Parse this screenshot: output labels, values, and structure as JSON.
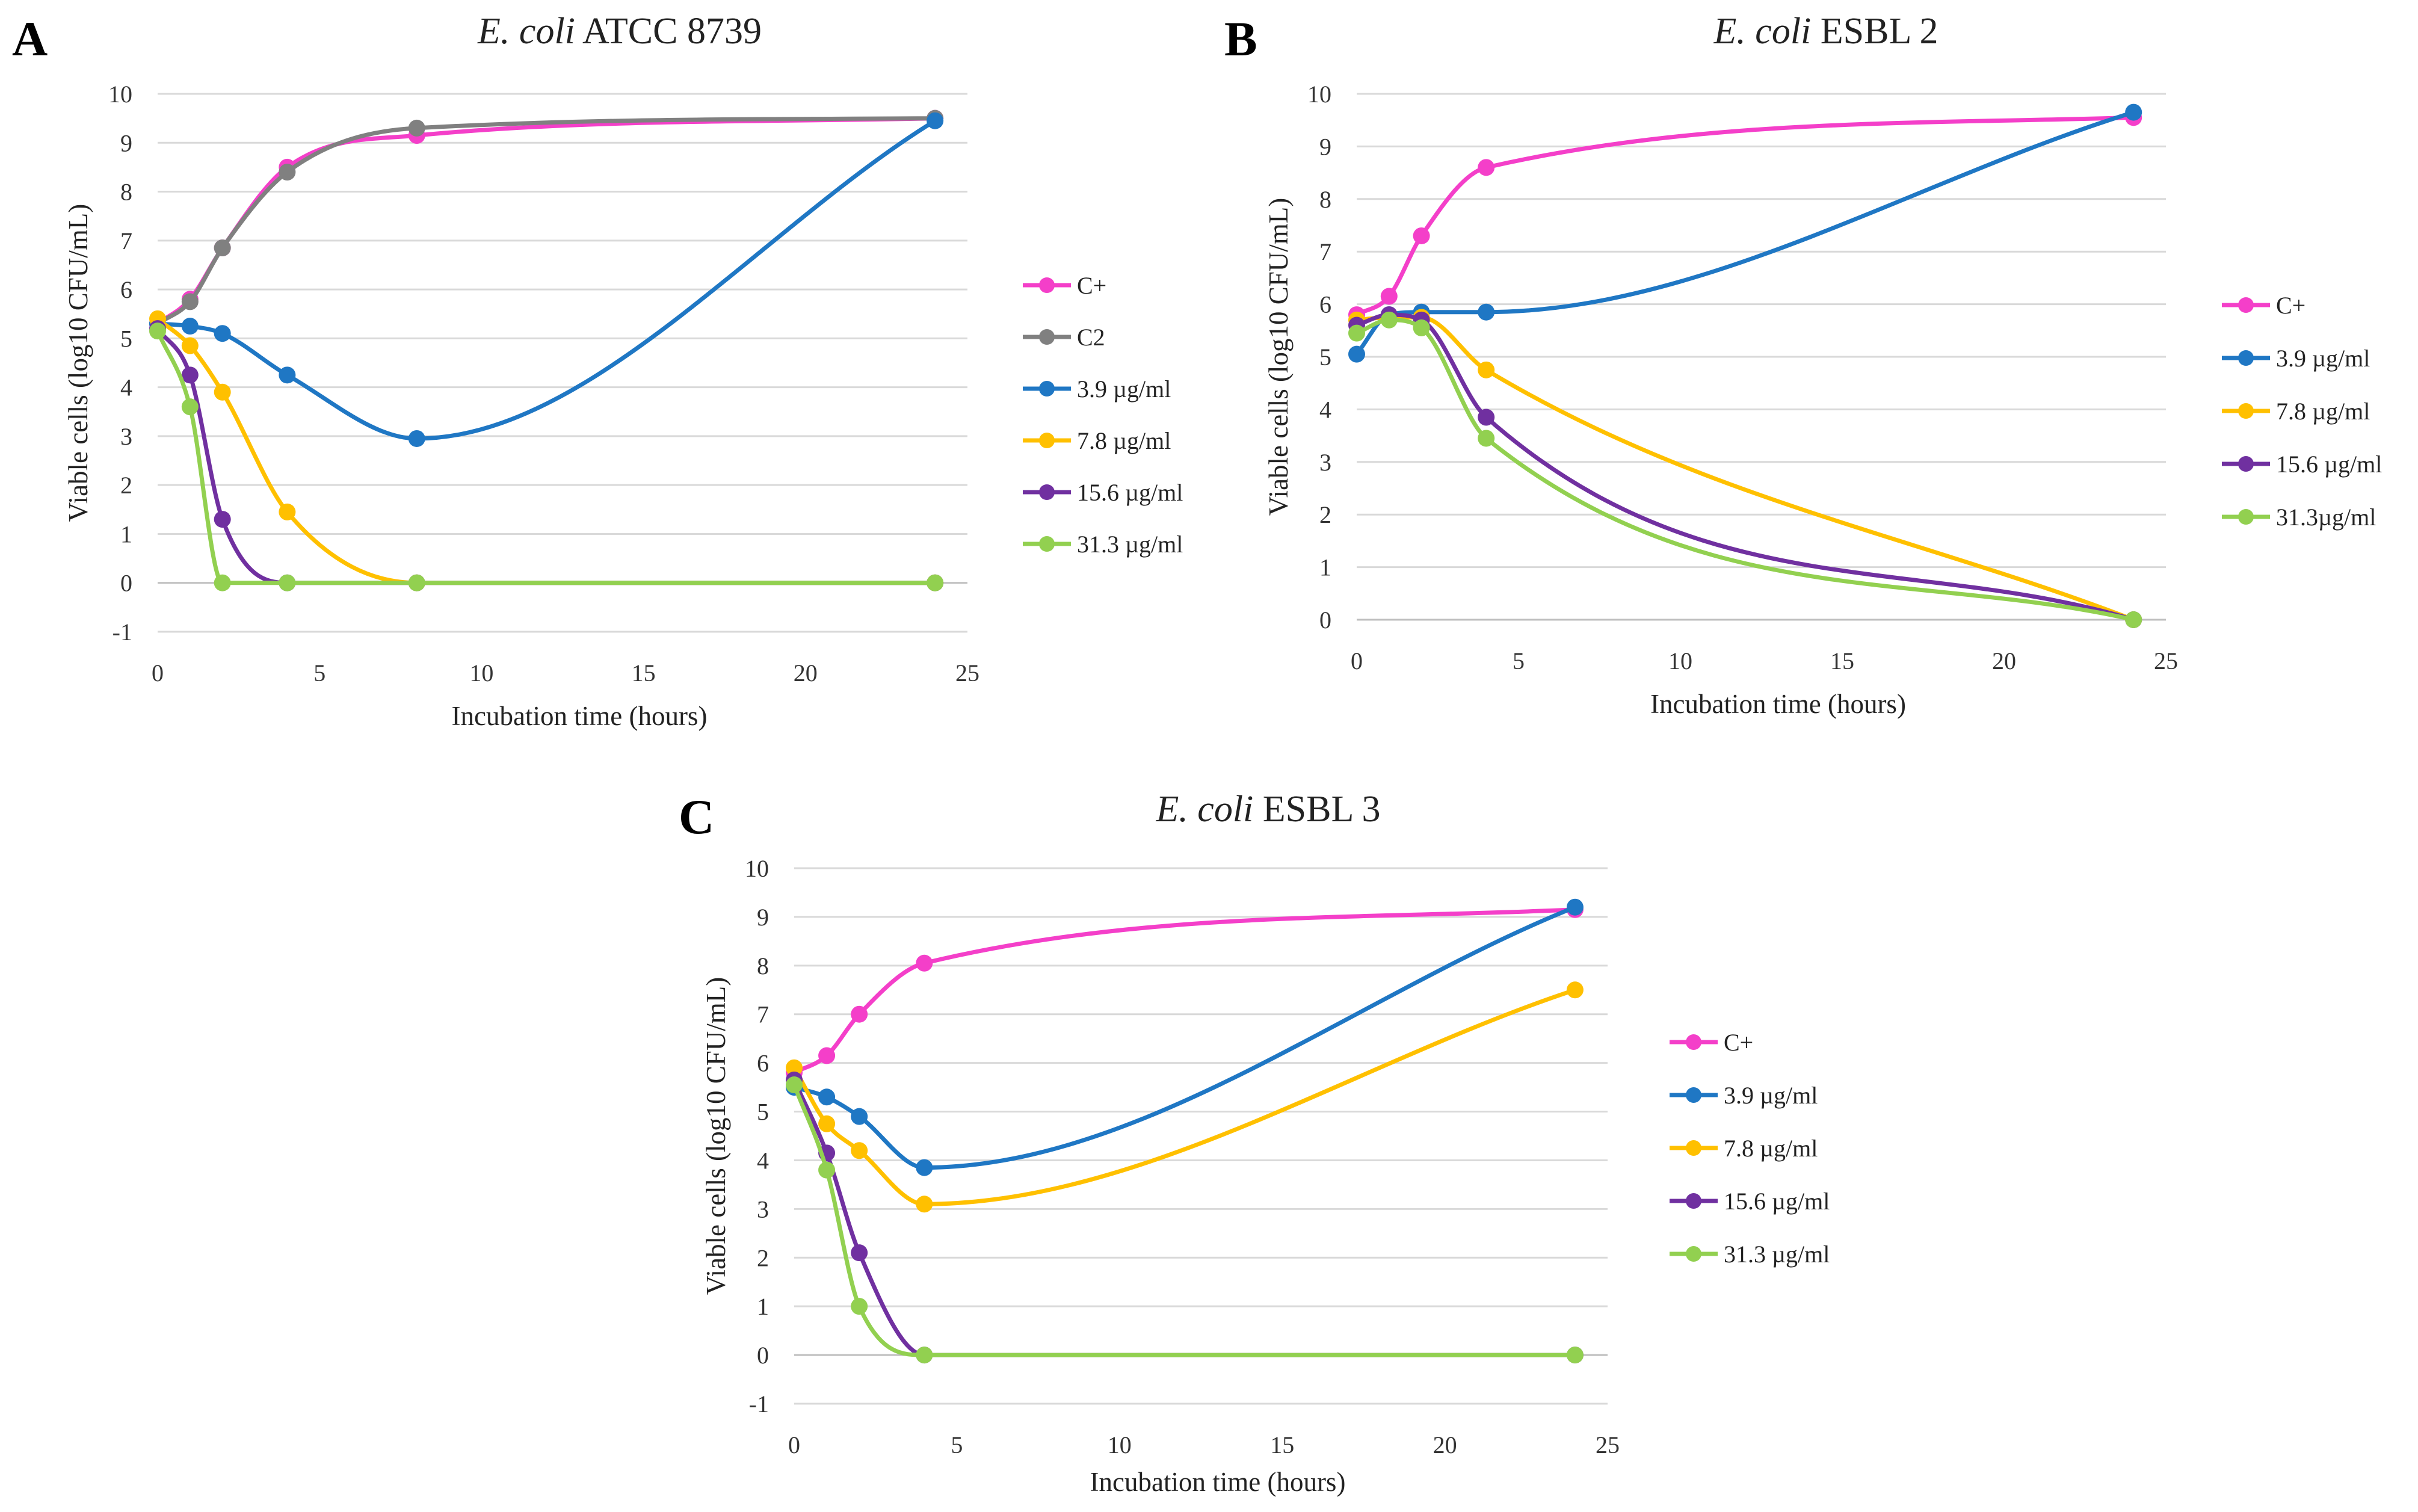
{
  "chart_data": [
    {
      "type": "line",
      "panel": "A",
      "title_italic": "E. coli",
      "title_rest": " ATCC 8739",
      "xlabel": "Incubation time (hours)",
      "ylabel": "Viable cells (log10 CFU/mL)",
      "xlim": [
        0,
        25
      ],
      "ylim": [
        -1,
        10
      ],
      "xticks": [
        0,
        5,
        10,
        15,
        20,
        25
      ],
      "yticks": [
        -1,
        0,
        1,
        2,
        3,
        4,
        5,
        6,
        7,
        8,
        9,
        10
      ],
      "x": [
        0,
        1,
        2,
        4,
        8,
        24
      ],
      "series": [
        {
          "name": "C+",
          "color": "#f43fc9",
          "values": [
            5.3,
            5.8,
            6.85,
            8.5,
            9.15,
            9.5
          ]
        },
        {
          "name": "C2",
          "color": "#808080",
          "values": [
            5.3,
            5.75,
            6.85,
            8.4,
            9.3,
            9.5
          ]
        },
        {
          "name": "3.9 µg/ml",
          "color": "#1f77c4",
          "values": [
            5.3,
            5.25,
            5.1,
            4.25,
            2.95,
            9.45
          ]
        },
        {
          "name": "7.8 µg/ml",
          "color": "#ffc000",
          "values": [
            5.4,
            4.85,
            3.9,
            1.45,
            0.0,
            0.0
          ]
        },
        {
          "name": "15.6 µg/ml",
          "color": "#7030a0",
          "values": [
            5.2,
            4.25,
            1.3,
            0.0,
            0.0,
            0.0
          ]
        },
        {
          "name": "31.3 µg/ml",
          "color": "#92d050",
          "values": [
            5.15,
            3.6,
            0.0,
            0.0,
            0.0,
            0.0
          ]
        }
      ]
    },
    {
      "type": "line",
      "panel": "B",
      "title_italic": "E. coli",
      "title_rest": " ESBL 2",
      "xlabel": "Incubation time (hours)",
      "ylabel": "Viable cells (log10 CFU/mL)",
      "xlim": [
        0,
        25
      ],
      "ylim": [
        0,
        10
      ],
      "xticks": [
        0,
        5,
        10,
        15,
        20,
        25
      ],
      "yticks": [
        0,
        1,
        2,
        3,
        4,
        5,
        6,
        7,
        8,
        9,
        10
      ],
      "x": [
        0,
        1,
        2,
        4,
        24
      ],
      "series": [
        {
          "name": "C+",
          "color": "#f43fc9",
          "values": [
            5.8,
            6.15,
            7.3,
            8.6,
            9.55
          ]
        },
        {
          "name": "3.9 µg/ml",
          "color": "#1f77c4",
          "values": [
            5.05,
            5.8,
            5.85,
            5.85,
            9.65
          ]
        },
        {
          "name": "7.8 µg/ml",
          "color": "#ffc000",
          "values": [
            5.7,
            5.75,
            5.75,
            4.75,
            0.0
          ]
        },
        {
          "name": "15.6 µg/ml",
          "color": "#7030a0",
          "values": [
            5.6,
            5.8,
            5.7,
            3.85,
            0.0
          ]
        },
        {
          "name": "31.3µg/ml",
          "color": "#92d050",
          "values": [
            5.45,
            5.7,
            5.55,
            3.45,
            0.0
          ]
        }
      ]
    },
    {
      "type": "line",
      "panel": "C",
      "title_italic": "E. coli",
      "title_rest": " ESBL 3",
      "xlabel": "Incubation time (hours)",
      "ylabel": "Viable cells (log10 CFU/mL)",
      "xlim": [
        0,
        25
      ],
      "ylim": [
        -1,
        10
      ],
      "xticks": [
        0,
        5,
        10,
        15,
        20,
        25
      ],
      "yticks": [
        -1,
        0,
        1,
        2,
        3,
        4,
        5,
        6,
        7,
        8,
        9,
        10
      ],
      "x": [
        0,
        1,
        2,
        4,
        24
      ],
      "series": [
        {
          "name": "C+",
          "color": "#f43fc9",
          "values": [
            5.8,
            6.15,
            7.0,
            8.05,
            9.15
          ]
        },
        {
          "name": "3.9 µg/ml",
          "color": "#1f77c4",
          "values": [
            5.5,
            5.3,
            4.9,
            3.85,
            9.2
          ]
        },
        {
          "name": "7.8 µg/ml",
          "color": "#ffc000",
          "values": [
            5.9,
            4.75,
            4.2,
            3.1,
            7.5
          ]
        },
        {
          "name": "15.6 µg/ml",
          "color": "#7030a0",
          "values": [
            5.65,
            4.15,
            2.1,
            0.0,
            0.0
          ]
        },
        {
          "name": "31.3 µg/ml",
          "color": "#92d050",
          "values": [
            5.55,
            3.8,
            1.0,
            0.0,
            0.0
          ]
        }
      ]
    }
  ]
}
